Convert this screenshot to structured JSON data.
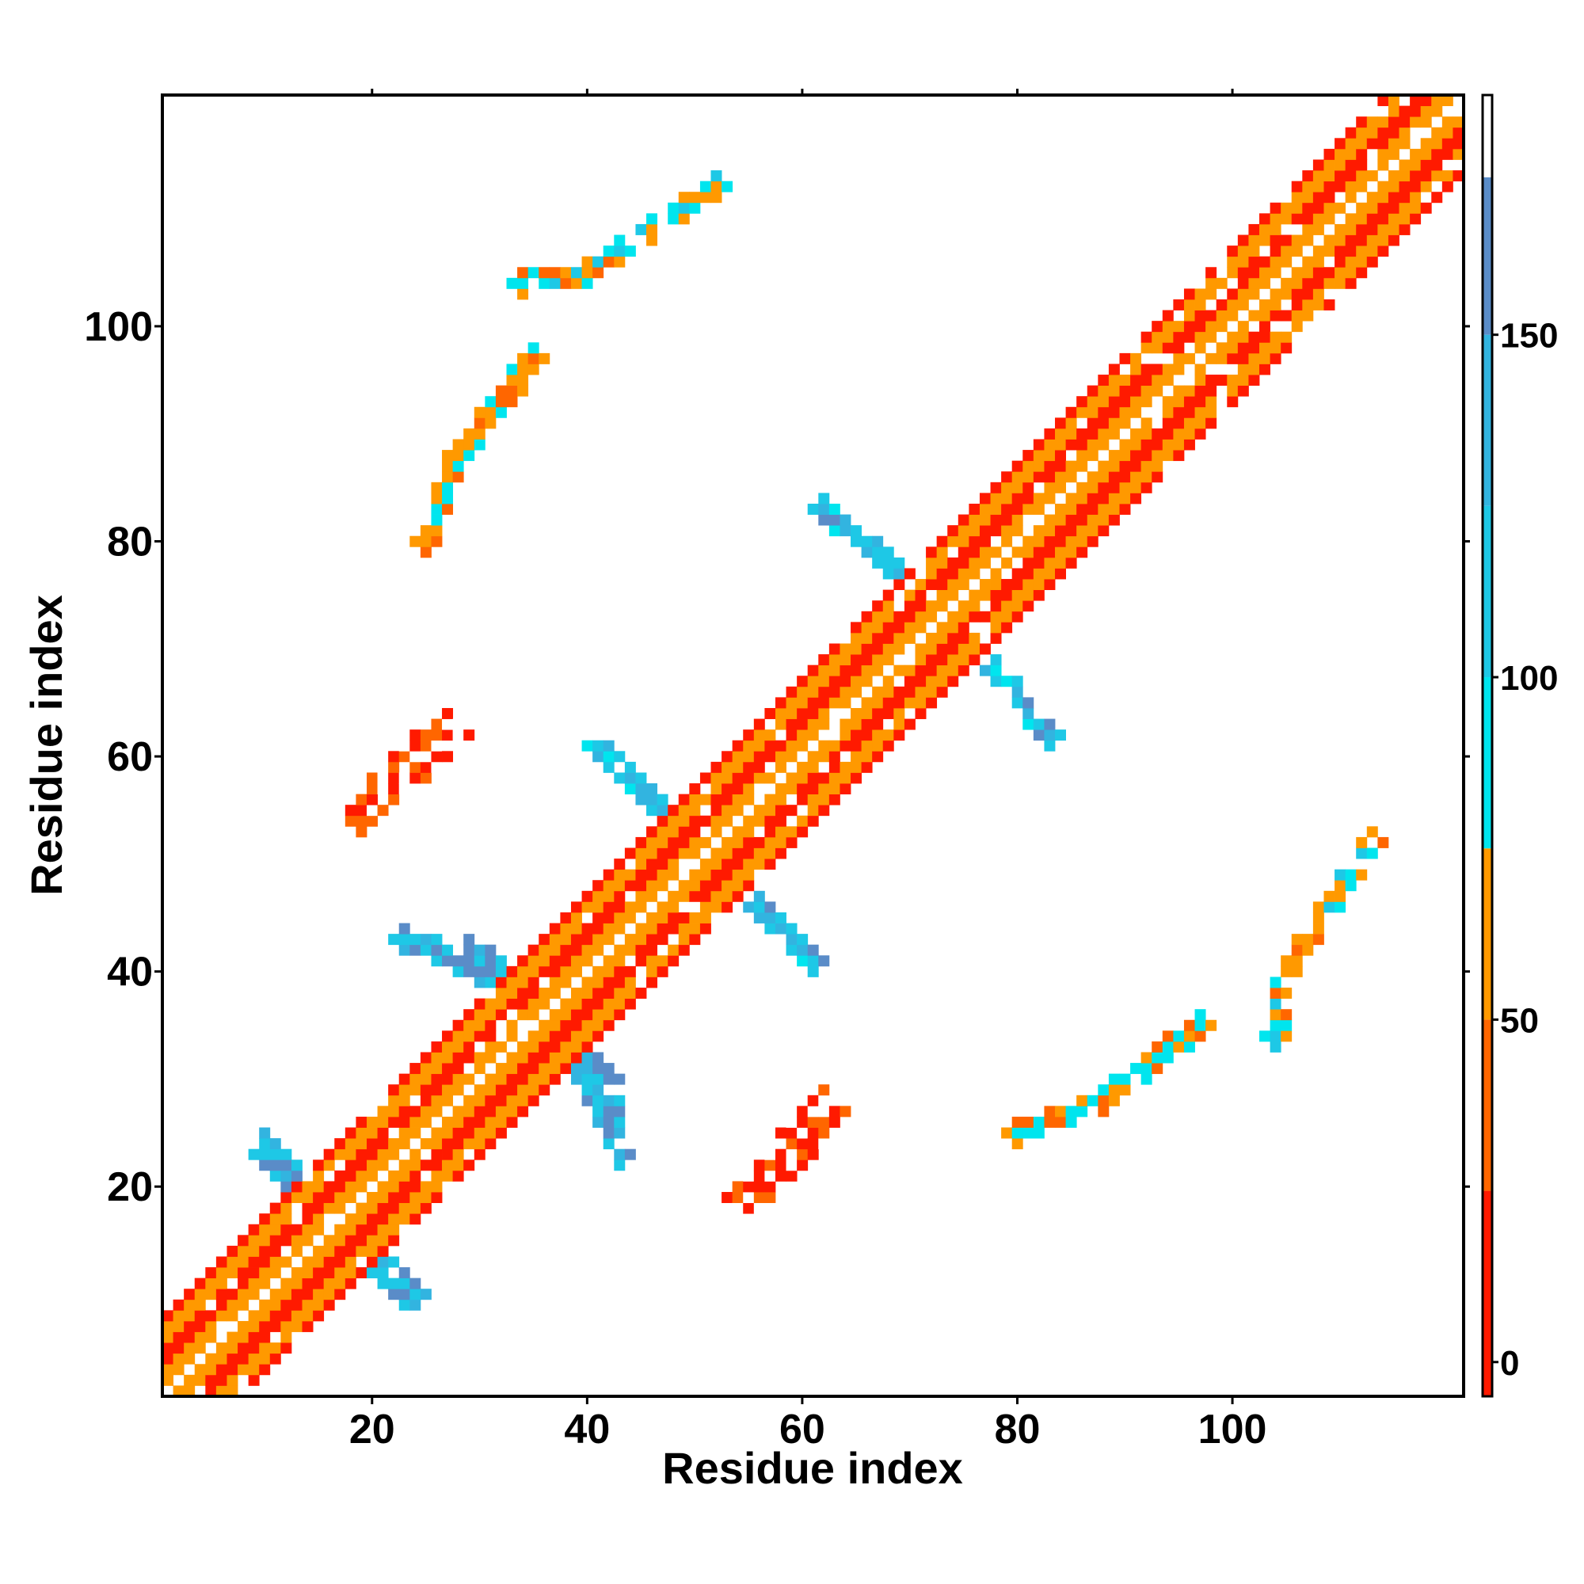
{
  "chart_data": {
    "type": "heatmap",
    "title": "",
    "xlabel": "Residue index",
    "ylabel": "Residue index",
    "x_range": [
      1,
      121
    ],
    "y_range": [
      1,
      121
    ],
    "x_ticks": [
      20,
      40,
      60,
      80,
      100
    ],
    "y_ticks": [
      20,
      40,
      60,
      80,
      100
    ],
    "colorbar": {
      "range": [
        -5,
        185
      ],
      "ticks": [
        0,
        50,
        100,
        150
      ],
      "bands": [
        {
          "from": -5,
          "to": 25,
          "color": "#ff1a00"
        },
        {
          "from": 25,
          "to": 50,
          "color": "#ff6600"
        },
        {
          "from": 50,
          "to": 75,
          "color": "#ff9900"
        },
        {
          "from": 75,
          "to": 100,
          "color": "#00e5ee"
        },
        {
          "from": 100,
          "to": 125,
          "color": "#1ec8e6"
        },
        {
          "from": 125,
          "to": 150,
          "color": "#32b4e0"
        },
        {
          "from": 150,
          "to": 173,
          "color": "#5a8cc8"
        },
        {
          "from": 173,
          "to": 185,
          "color": "#ffffff"
        }
      ]
    },
    "regions": [
      {
        "name": "diagonal band",
        "points": [
          [
            1,
            1
          ],
          [
            121,
            121
          ]
        ],
        "halfwidth": 5,
        "value": 45
      },
      {
        "name": "cross 1 arm a",
        "points": [
          [
            10,
            24
          ],
          [
            17,
            17
          ],
          [
            23,
            10
          ]
        ],
        "halfwidth": 1,
        "value": 130
      },
      {
        "name": "cross 2 arm a",
        "points": [
          [
            23,
            43
          ],
          [
            30,
            40
          ],
          [
            36,
            36
          ],
          [
            42,
            30
          ],
          [
            43,
            23
          ]
        ],
        "halfwidth": 1,
        "value": 130
      },
      {
        "name": "cross 3 arm a",
        "points": [
          [
            41,
            61
          ],
          [
            50,
            52
          ],
          [
            52,
            50
          ],
          [
            61,
            41
          ]
        ],
        "halfwidth": 1,
        "value": 120
      },
      {
        "name": "cross 4 arm a",
        "points": [
          [
            62,
            83
          ],
          [
            68,
            78
          ],
          [
            73,
            73
          ],
          [
            78,
            68
          ],
          [
            83,
            62
          ]
        ],
        "halfwidth": 1,
        "value": 120
      },
      {
        "name": "contact 20-60",
        "points": [
          [
            55,
            19
          ],
          [
            58,
            22
          ],
          [
            62,
            27
          ]
        ],
        "halfwidth": 2,
        "value": 10
      },
      {
        "name": "contact 60-20",
        "points": [
          [
            19,
            55
          ],
          [
            22,
            58
          ],
          [
            27,
            62
          ]
        ],
        "halfwidth": 2,
        "value": 10
      },
      {
        "name": "contact 30-95",
        "points": [
          [
            25,
            80
          ],
          [
            28,
            88
          ],
          [
            32,
            93
          ],
          [
            35,
            97
          ]
        ],
        "halfwidth": 1,
        "value": 60
      },
      {
        "name": "contact 95-30",
        "points": [
          [
            80,
            25
          ],
          [
            88,
            28
          ],
          [
            93,
            32
          ],
          [
            97,
            35
          ]
        ],
        "halfwidth": 1,
        "value": 60
      },
      {
        "name": "contact 35-105",
        "points": [
          [
            34,
            104
          ],
          [
            40,
            105
          ],
          [
            52,
            113
          ]
        ],
        "halfwidth": 1,
        "value": 70
      },
      {
        "name": "contact 105-35",
        "points": [
          [
            104,
            34
          ],
          [
            105,
            40
          ],
          [
            113,
            52
          ]
        ],
        "halfwidth": 1,
        "value": 70
      }
    ]
  }
}
